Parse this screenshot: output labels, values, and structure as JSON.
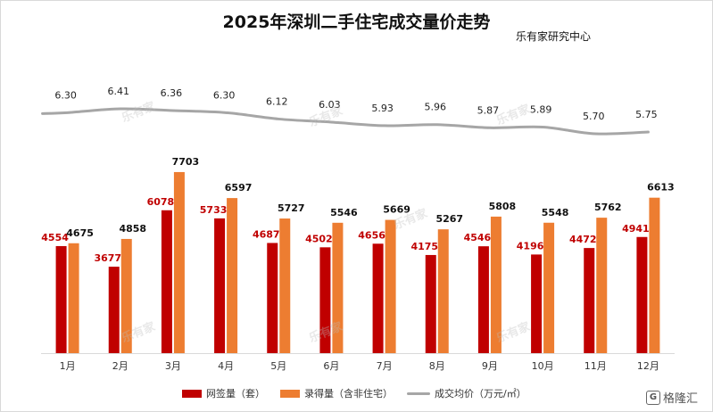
{
  "title": "2025年深圳二手住宅成交量价走势",
  "source": "乐有家研究中心",
  "watermark": "乐有家",
  "corner_logo": {
    "glyph": "G",
    "text": "格隆汇"
  },
  "legend": [
    {
      "label": "网签量（套）",
      "color": "#c00000"
    },
    {
      "label": "录得量（含非住宅）",
      "color": "#ed7d31"
    },
    {
      "label": "成交均价（万元/㎡）",
      "color": "#a6a6a6"
    }
  ],
  "chart_data": {
    "type": "bar",
    "categories": [
      "1月",
      "2月",
      "3月",
      "4月",
      "5月",
      "6月",
      "7月",
      "8月",
      "9月",
      "10月",
      "11月",
      "12月"
    ],
    "series": [
      {
        "name": "网签量（套）",
        "type": "bar",
        "color": "#c00000",
        "label_color": "#c00000",
        "values": [
          4554,
          3677,
          6078,
          5733,
          4687,
          4502,
          4656,
          4175,
          4546,
          4196,
          4472,
          4941
        ]
      },
      {
        "name": "录得量（含非住宅）",
        "type": "bar",
        "color": "#ed7d31",
        "label_color": "#111111",
        "values": [
          4675,
          4858,
          7703,
          6597,
          5727,
          5546,
          5669,
          5267,
          5808,
          5548,
          5762,
          6613
        ]
      },
      {
        "name": "成交均价（万元/㎡）",
        "type": "line",
        "color": "#a6a6a6",
        "values": [
          6.3,
          6.41,
          6.36,
          6.3,
          6.12,
          6.03,
          5.93,
          5.96,
          5.87,
          5.89,
          5.7,
          5.75
        ],
        "labels": [
          "6.30",
          "6.41",
          "6.36",
          "6.30",
          "6.12",
          "6.03",
          "5.93",
          "5.96",
          "5.87",
          "5.89",
          "5.70",
          "5.75"
        ]
      }
    ],
    "bar_ylim": [
      0,
      9000
    ],
    "line_ylim": [
      4.6,
      6.6
    ],
    "grid": false,
    "legend_position": "bottom"
  }
}
